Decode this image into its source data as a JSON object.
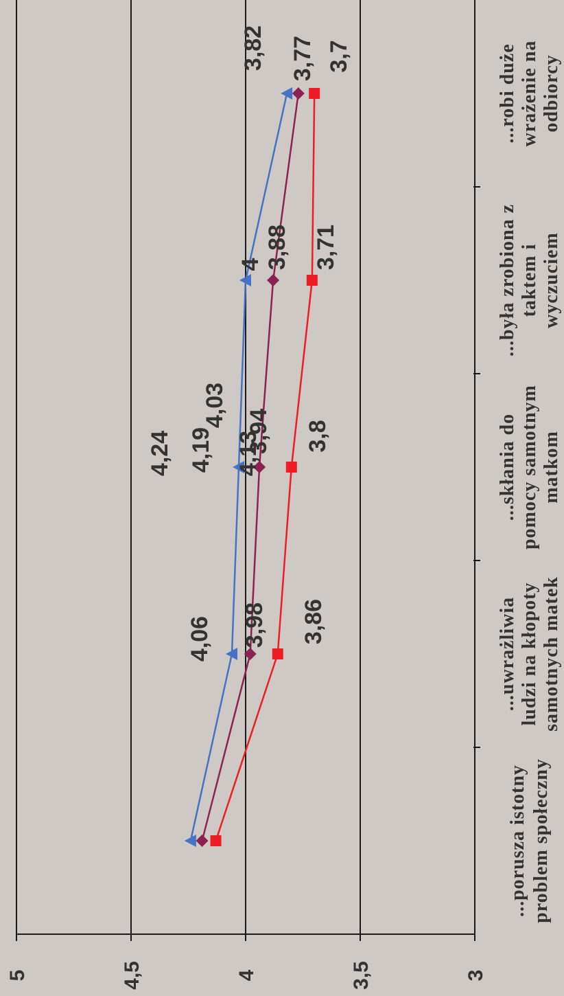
{
  "chart_data": {
    "type": "line",
    "categories": [
      [
        "...porusza istotny",
        "problem społeczny"
      ],
      [
        "...uwrażliwia",
        "ludzi na kłopoty",
        "samotnych matek"
      ],
      [
        "...skłania do",
        "pomocy samotnym",
        "matkom"
      ],
      [
        "...była zrobiona z",
        "taktem i",
        "wyczuciem"
      ],
      [
        "...robi duże",
        "wrażenie na",
        "odbiorcy"
      ]
    ],
    "ylim": [
      3,
      5
    ],
    "yticks": [
      "3",
      "3,5",
      "4",
      "4,5",
      "5"
    ],
    "grid": true,
    "series": [
      {
        "values": [
          4.24,
          4.06,
          4.03,
          4.0,
          3.82
        ],
        "labels": [
          "4,24",
          "4,06",
          "4,03",
          "4",
          "3,82"
        ],
        "color": "#4472c4",
        "marker": "triangle"
      },
      {
        "values": [
          4.19,
          3.98,
          3.94,
          3.88,
          3.77
        ],
        "labels": [
          "4,19",
          "3,98",
          "3,94",
          "3,88",
          "3,77"
        ],
        "color": "#8b2252",
        "marker": "diamond"
      },
      {
        "values": [
          4.13,
          3.86,
          3.8,
          3.71,
          3.7
        ],
        "labels": [
          "4,13",
          "3,86",
          "3,8",
          "3,71",
          "3,7"
        ],
        "color": "#ee1c25",
        "marker": "square"
      }
    ]
  }
}
